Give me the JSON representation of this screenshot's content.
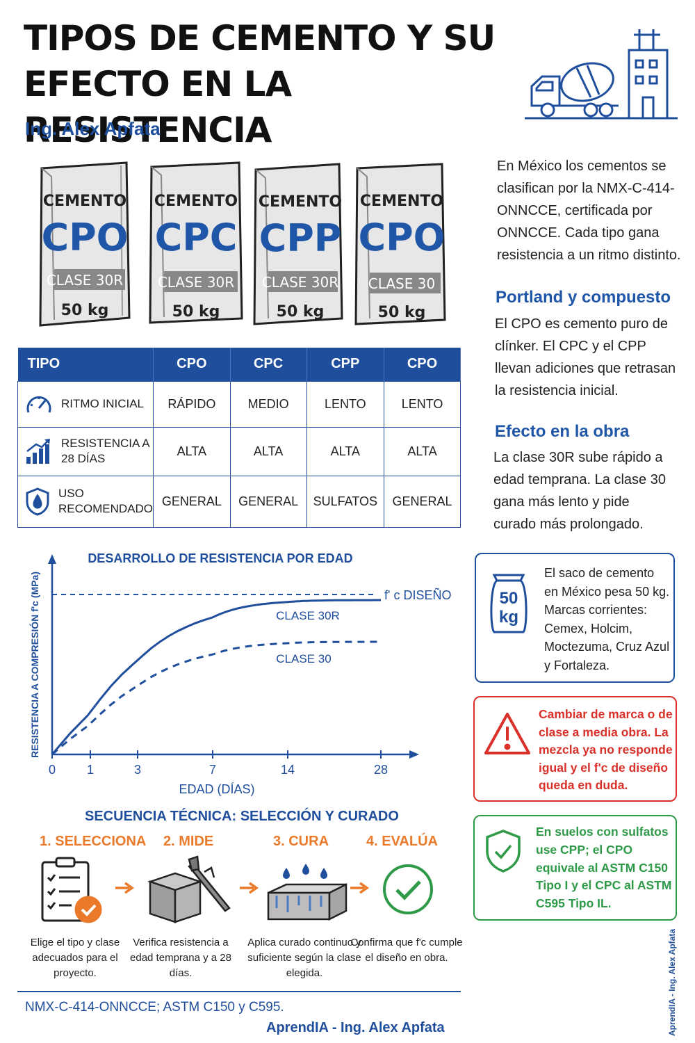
{
  "title_line1": "TIPOS DE CEMENTO Y SU",
  "title_line2": "EFECTO EN LA RESISTENCIA",
  "author": "Ing. Alex Apfata",
  "bags": [
    {
      "brand": "CEMENTO",
      "code": "CPO",
      "class": "CLASE 30R",
      "weight": "50 kg"
    },
    {
      "brand": "CEMENTO",
      "code": "CPC",
      "class": "CLASE 30R",
      "weight": "50 kg"
    },
    {
      "brand": "CEMENTO",
      "code": "CPP",
      "class": "CLASE 30R",
      "weight": "50 kg"
    },
    {
      "brand": "CEMENTO",
      "code": "CPO",
      "class": "CLASE 30",
      "weight": "50 kg"
    }
  ],
  "intro": "En México los cementos se clasifican por la NMX-C-414-ONNCCE, certificada por ONNCCE. Cada tipo gana resistencia a un ritmo distinto.",
  "section1": {
    "heading": "Portland y compuesto",
    "text": "El CPO es cemento puro de clínker. El CPC y el CPP llevan adiciones que retrasan la resistencia inicial."
  },
  "section2": {
    "heading": "Efecto en la obra",
    "text": "La clase 30R sube rápido a edad temprana. La clase 30 gana más lento y pide curado más prolongado."
  },
  "table": {
    "headers": [
      "TIPO",
      "CPO",
      "CPC",
      "CPP",
      "CPO"
    ],
    "rows": [
      {
        "label": "RITMO INICIAL",
        "icon": "gauge-icon",
        "values": [
          "RÁPIDO",
          "MEDIO",
          "LENTO",
          "LENTO"
        ]
      },
      {
        "label": "RESISTENCIA A 28 DÍAS",
        "icon": "bar-growth-icon",
        "values": [
          "ALTA",
          "ALTA",
          "ALTA",
          "ALTA"
        ]
      },
      {
        "label": "USO RECOMENDADO",
        "icon": "shield-drop-icon",
        "values": [
          "GENERAL",
          "GENERAL",
          "SULFATOS",
          "GENERAL"
        ]
      }
    ]
  },
  "chart_data": {
    "type": "line",
    "title": "DESARROLLO DE RESISTENCIA POR EDAD",
    "xlabel": "EDAD (DÍAS)",
    "ylabel": "RESISTENCIA A COMPRESIÓN f'c (MPa)",
    "x_ticks": [
      0,
      1,
      3,
      7,
      14,
      28
    ],
    "x": [
      0,
      1,
      3,
      7,
      14,
      21,
      28
    ],
    "reference_label": "f' c DISEÑO",
    "reference_value": 1.0,
    "series": [
      {
        "name": "CLASE 30R",
        "style": "solid",
        "values": [
          0,
          0.42,
          0.72,
          0.88,
          0.95,
          0.97,
          0.98
        ]
      },
      {
        "name": "CLASE 30",
        "style": "dashed",
        "values": [
          0,
          0.22,
          0.45,
          0.62,
          0.72,
          0.75,
          0.77
        ]
      }
    ]
  },
  "info_box": {
    "icon_text1": "50",
    "icon_text2": "kg",
    "text": "El saco de cemento en México pesa 50 kg. Marcas corrientes: Cemex, Holcim, Moctezuma, Cruz Azul y Fortaleza."
  },
  "warning_box": {
    "text": "Cambiar de marca o de clase a media obra. La mezcla ya no responde igual y el f'c de diseño queda en duda."
  },
  "ok_box": {
    "text": "En suelos con sulfatos use CPP; el CPO equivale al ASTM C150 Tipo I y el CPC al ASTM C595 Tipo IL."
  },
  "sequence": {
    "title": "SECUENCIA TÉCNICA: SELECCIÓN Y CURADO",
    "steps": [
      {
        "heading": "1. SELECCIONA",
        "text": "Elige el tipo y clase adecuados para el proyecto."
      },
      {
        "heading": "2. MIDE",
        "text": "Verifica resistencia a edad temprana y a 28 días."
      },
      {
        "heading": "3. CURA",
        "text": "Aplica curado continuo y suficiente según la clase elegida."
      },
      {
        "heading": "4. EVALÚA",
        "text": "Confirma que f'c cumple el diseño en obra."
      }
    ]
  },
  "footer": {
    "refs": "NMX-C-414-ONNCCE; ASTM C150 y C595.",
    "brand": "AprendIA - Ing. Alex Apfata",
    "vertical": "AprendIA - Ing. Alex Apfata"
  },
  "colors": {
    "primary": "#1f4e9c",
    "accent": "#ea7a2a",
    "danger": "#d9302a",
    "ok": "#2e9a47"
  }
}
